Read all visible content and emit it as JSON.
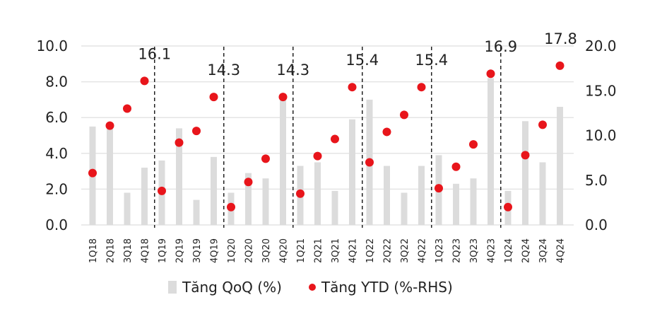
{
  "chart_data": {
    "type": "bar",
    "title": "",
    "categories": [
      "1Q18",
      "2Q18",
      "3Q18",
      "4Q18",
      "1Q19",
      "2Q19",
      "3Q19",
      "4Q19",
      "1Q20",
      "2Q20",
      "3Q20",
      "4Q20",
      "1Q21",
      "2Q21",
      "3Q21",
      "4Q21",
      "1Q22",
      "2Q22",
      "3Q22",
      "4Q22",
      "1Q23",
      "2Q23",
      "3Q23",
      "4Q23",
      "1Q24",
      "2Q24",
      "3Q24",
      "4Q24"
    ],
    "series": [
      {
        "name": "Tăng QoQ (%)",
        "type": "bar",
        "axis": "left",
        "color": "#dcdcdc",
        "values": [
          5.5,
          5.5,
          1.8,
          3.2,
          3.6,
          5.4,
          1.4,
          3.8,
          1.8,
          2.9,
          2.6,
          7.1,
          3.3,
          3.5,
          1.9,
          5.9,
          7.0,
          3.3,
          1.8,
          3.3,
          3.9,
          2.3,
          2.6,
          8.2,
          1.9,
          5.8,
          3.5,
          6.6
        ]
      },
      {
        "name": "Tăng YTD (%-RHS)",
        "type": "scatter",
        "axis": "right",
        "color": "#e8151b",
        "values": [
          5.8,
          11.1,
          13.0,
          16.1,
          3.8,
          9.2,
          10.5,
          14.3,
          2.0,
          4.8,
          7.4,
          14.3,
          3.5,
          7.7,
          9.6,
          15.4,
          7.0,
          10.4,
          12.3,
          15.4,
          4.1,
          6.5,
          9.0,
          16.9,
          2.0,
          7.8,
          11.2,
          17.8
        ]
      }
    ],
    "annotations": [
      "16.1",
      "14.3",
      "14.3",
      "15.4",
      "15.4",
      "16.9",
      "17.8"
    ],
    "ylim": [
      0,
      10
    ],
    "y2lim": [
      0,
      20
    ],
    "yticks": [
      "0.0",
      "2.0",
      "4.0",
      "6.0",
      "8.0",
      "10.0"
    ],
    "y2ticks": [
      "0.0",
      "5.0",
      "10.0",
      "15.0",
      "20.0"
    ],
    "grid": true,
    "legend_position": "bottom"
  }
}
